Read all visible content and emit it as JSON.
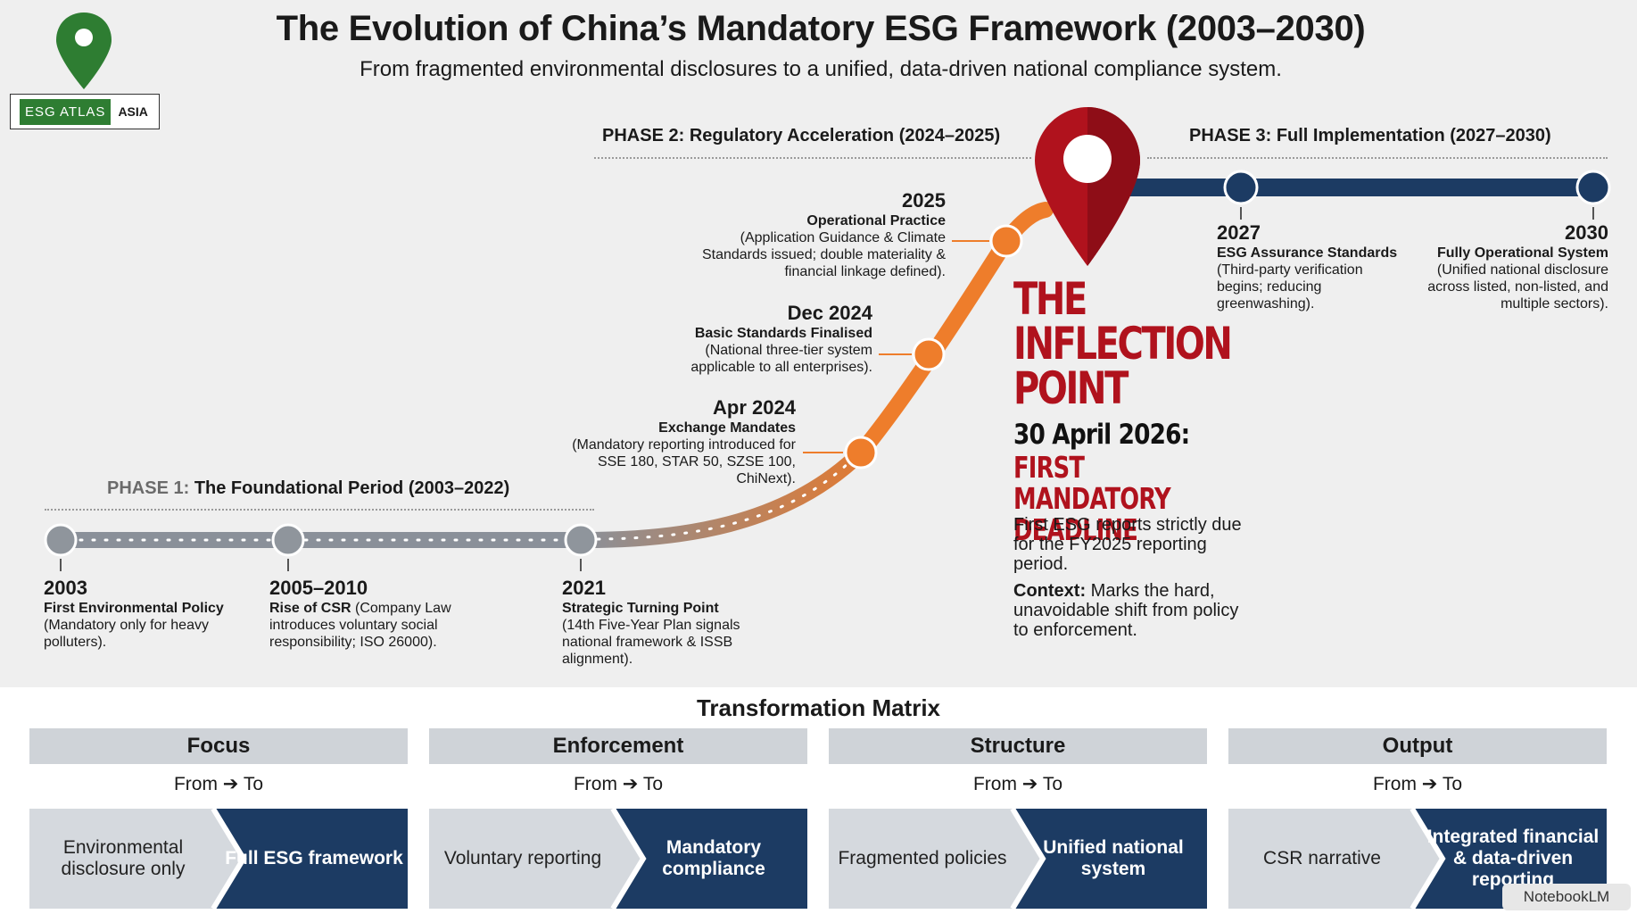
{
  "header": {
    "title": "The Evolution of China’s Mandatory ESG Framework (2003–2030)",
    "subtitle": "From fragmented environmental disclosures to a unified, data-driven national compliance system.",
    "logo": {
      "left": "ESG ATLAS",
      "right": "ASIA",
      "pin_color": "#2e7d32"
    }
  },
  "phases": [
    {
      "prefix": "PHASE 1:",
      "name": "The Foundational Period (2003–2022)"
    },
    {
      "prefix": "PHASE 2:",
      "name": "Regulatory Acceleration (2024–2025)"
    },
    {
      "prefix": "PHASE 3:",
      "name": "Full Implementation (2027–2030)"
    }
  ],
  "events": [
    {
      "year": "2003",
      "title": "First Environmental Policy",
      "detail": " (Mandatory only for heavy polluters)."
    },
    {
      "year": "2005–2010",
      "title": "Rise of CSR",
      "detail": " (Company Law introduces voluntary social responsibility; ISO 26000)."
    },
    {
      "year": "2021",
      "title": "Strategic Turning Point",
      "detail": "(14th Five-Year Plan signals national framework & ISSB alignment)."
    },
    {
      "year": "Apr 2024",
      "title": "Exchange Mandates",
      "detail": "(Mandatory reporting introduced for SSE 180, STAR 50, SZSE 100, ChiNext)."
    },
    {
      "year": "Dec 2024",
      "title": "Basic Standards Finalised",
      "detail": "(National three-tier system applicable to all enterprises)."
    },
    {
      "year": "2025",
      "title": "Operational Practice",
      "detail": "(Application Guidance & Climate Standards issued; double materiality & financial linkage defined)."
    },
    {
      "year": "2027",
      "title": "ESG Assurance Standards",
      "detail": " (Third-party verification begins; reducing greenwashing)."
    },
    {
      "year": "2030",
      "title": "Fully Operational System",
      "detail": " (Unified national disclosure across listed, non-listed, and multiple sectors)."
    }
  ],
  "inflection": {
    "title": "THE INFLECTION POINT",
    "date": "30 April 2026:",
    "deadline": "FIRST MANDATORY DEADLINE",
    "body": "First ESG reports strictly due for the FY2025 reporting period.",
    "context_label": "Context:",
    "context": " Marks the hard, unavoidable shift from policy to enforcement.",
    "accent": "#b0121d"
  },
  "matrix": {
    "title": "Transformation Matrix",
    "from_to": {
      "from": "From",
      "arrow": "➔",
      "to": "To"
    },
    "columns": [
      {
        "head": "Focus",
        "from": "Environmental disclosure only",
        "to": "Full ESG framework"
      },
      {
        "head": "Enforcement",
        "from": "Voluntary reporting",
        "to": "Mandatory compliance"
      },
      {
        "head": "Structure",
        "from": "Fragmented policies",
        "to": "Unified national system"
      },
      {
        "head": "Output",
        "from": "CSR narrative",
        "to": "Integrated financial & data-driven reporting"
      }
    ]
  },
  "colors": {
    "navy": "#1c3b63",
    "orange": "#ee7d2b",
    "grey": "#8a9099",
    "red": "#b0121d"
  },
  "watermark": "NotebookLM"
}
